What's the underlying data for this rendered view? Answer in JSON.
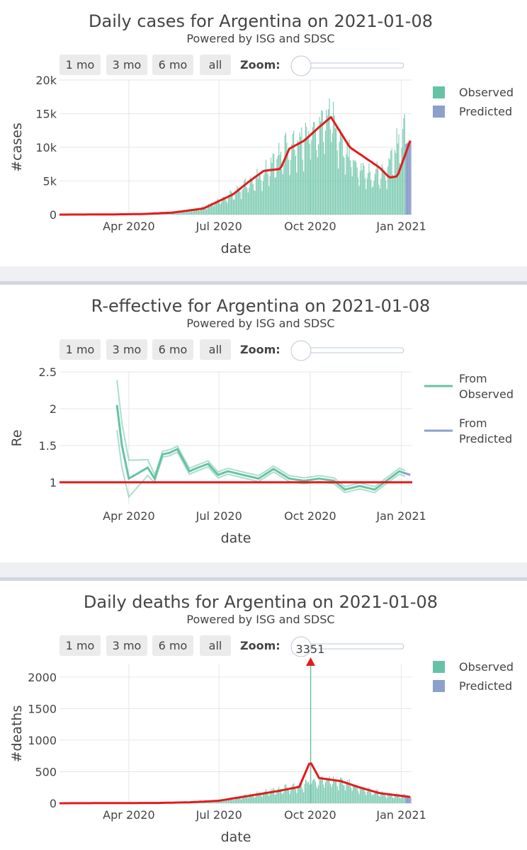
{
  "charts": [
    {
      "id": "cases",
      "title": "Daily cases for Argentina on 2021-01-08",
      "subtitle": "Powered by ISG and SDSC",
      "ylabel": "#cases",
      "xlabel": "date",
      "buttons": [
        "1 mo",
        "3 mo",
        "6 mo",
        "all"
      ],
      "zoom_label": "Zoom:",
      "legend": [
        "Observed",
        "Predicted"
      ]
    },
    {
      "id": "re",
      "title": "R-effective for Argentina on 2021-01-08",
      "subtitle": "Powered by ISG and SDSC",
      "ylabel": "Re",
      "xlabel": "date",
      "buttons": [
        "1 mo",
        "3 mo",
        "6 mo",
        "all"
      ],
      "zoom_label": "Zoom:",
      "legend": [
        [
          "From",
          "Observed"
        ],
        [
          "From",
          "Predicted"
        ]
      ]
    },
    {
      "id": "deaths",
      "title": "Daily deaths for Argentina on 2021-01-08",
      "subtitle": "Powered by ISG and SDSC",
      "ylabel": "#deaths",
      "xlabel": "date",
      "buttons": [
        "1 mo",
        "3 mo",
        "6 mo",
        "all"
      ],
      "zoom_label": "Zoom:",
      "legend": [
        "Observed",
        "Predicted"
      ],
      "annotation": "3351"
    }
  ],
  "colors": {
    "observed": "#66c2a5",
    "predicted": "#8da0cb",
    "smooth": "#e41a1c",
    "grid": "#e6e6e6"
  },
  "chart_data": [
    {
      "type": "bar",
      "title": "Daily cases for Argentina on 2021-01-08",
      "xlabel": "date",
      "ylabel": "#cases",
      "x_range": [
        "2020-01-22",
        "2021-01-12"
      ],
      "ylim": [
        0,
        20000
      ],
      "yticks": [
        0,
        5000,
        10000,
        15000,
        20000
      ],
      "ytick_labels": [
        "0",
        "5k",
        "10k",
        "15k",
        "20k"
      ],
      "xticks": [
        "2020-04-01",
        "2020-07-01",
        "2020-10-01",
        "2021-01-01"
      ],
      "xtick_labels": [
        "Apr 2020",
        "Jul 2020",
        "Oct 2020",
        "Jan 2021"
      ],
      "observed_weekly": [
        [
          "2020-03-01",
          10
        ],
        [
          "2020-03-15",
          60
        ],
        [
          "2020-04-01",
          100
        ],
        [
          "2020-04-15",
          130
        ],
        [
          "2020-05-01",
          180
        ],
        [
          "2020-05-15",
          380
        ],
        [
          "2020-06-01",
          650
        ],
        [
          "2020-06-15",
          1000
        ],
        [
          "2020-07-01",
          2200
        ],
        [
          "2020-07-15",
          3300
        ],
        [
          "2020-08-01",
          5000
        ],
        [
          "2020-08-15",
          6300
        ],
        [
          "2020-09-01",
          9500
        ],
        [
          "2020-09-15",
          11000
        ],
        [
          "2020-10-01",
          12500
        ],
        [
          "2020-10-15",
          14000
        ],
        [
          "2020-10-22",
          15500
        ],
        [
          "2020-11-01",
          10500
        ],
        [
          "2020-11-15",
          8000
        ],
        [
          "2020-12-01",
          6000
        ],
        [
          "2020-12-15",
          6500
        ],
        [
          "2020-12-25",
          10000
        ],
        [
          "2021-01-05",
          12500
        ]
      ],
      "predicted": [
        [
          "2021-01-05",
          10500
        ],
        [
          "2021-01-10",
          11000
        ]
      ],
      "smooth": [
        [
          "2020-01-22",
          0
        ],
        [
          "2020-03-15",
          30
        ],
        [
          "2020-04-15",
          90
        ],
        [
          "2020-05-15",
          300
        ],
        [
          "2020-06-15",
          900
        ],
        [
          "2020-07-15",
          3000
        ],
        [
          "2020-08-01",
          5000
        ],
        [
          "2020-08-15",
          6500
        ],
        [
          "2020-09-01",
          6800
        ],
        [
          "2020-09-10",
          9800
        ],
        [
          "2020-09-25",
          11000
        ],
        [
          "2020-10-10",
          13000
        ],
        [
          "2020-10-22",
          14500
        ],
        [
          "2020-11-10",
          10000
        ],
        [
          "2020-11-25",
          8500
        ],
        [
          "2020-12-10",
          7000
        ],
        [
          "2020-12-20",
          5500
        ],
        [
          "2020-12-28",
          5700
        ],
        [
          "2021-01-10",
          11000
        ]
      ]
    },
    {
      "type": "line",
      "title": "R-effective for Argentina on 2021-01-08",
      "xlabel": "date",
      "ylabel": "Re",
      "x_range": [
        "2020-01-22",
        "2021-01-12"
      ],
      "ylim": [
        0.7,
        2.5
      ],
      "yticks": [
        1,
        1.5,
        2,
        2.5
      ],
      "ytick_labels": [
        "1",
        "1.5",
        "2",
        "2.5"
      ],
      "xticks": [
        "2020-04-01",
        "2020-07-01",
        "2020-10-01",
        "2021-01-01"
      ],
      "xtick_labels": [
        "Apr 2020",
        "Jul 2020",
        "Oct 2020",
        "Jan 2021"
      ],
      "series": [
        {
          "name": "From Observed",
          "values": [
            [
              "2020-03-20",
              2.05
            ],
            [
              "2020-03-25",
              1.5
            ],
            [
              "2020-04-01",
              1.05
            ],
            [
              "2020-04-10",
              1.12
            ],
            [
              "2020-04-20",
              1.2
            ],
            [
              "2020-04-27",
              1.05
            ],
            [
              "2020-05-05",
              1.38
            ],
            [
              "2020-05-12",
              1.4
            ],
            [
              "2020-05-20",
              1.45
            ],
            [
              "2020-06-01",
              1.15
            ],
            [
              "2020-06-10",
              1.2
            ],
            [
              "2020-06-20",
              1.25
            ],
            [
              "2020-06-30",
              1.1
            ],
            [
              "2020-07-10",
              1.15
            ],
            [
              "2020-07-25",
              1.1
            ],
            [
              "2020-08-10",
              1.05
            ],
            [
              "2020-08-25",
              1.18
            ],
            [
              "2020-09-10",
              1.05
            ],
            [
              "2020-09-25",
              1.02
            ],
            [
              "2020-10-10",
              1.05
            ],
            [
              "2020-10-25",
              1.02
            ],
            [
              "2020-11-05",
              0.9
            ],
            [
              "2020-11-20",
              0.95
            ],
            [
              "2020-12-05",
              0.9
            ],
            [
              "2020-12-20",
              1.05
            ],
            [
              "2020-12-30",
              1.15
            ],
            [
              "2021-01-05",
              1.12
            ]
          ]
        },
        {
          "name": "From Predicted",
          "values": [
            [
              "2021-01-03",
              1.13
            ],
            [
              "2021-01-10",
              1.1
            ]
          ]
        }
      ],
      "reference_line": 1
    },
    {
      "type": "bar",
      "title": "Daily deaths for Argentina on 2021-01-08",
      "xlabel": "date",
      "ylabel": "#deaths",
      "x_range": [
        "2020-01-22",
        "2021-01-12"
      ],
      "ylim": [
        0,
        2200
      ],
      "yticks": [
        0,
        500,
        1000,
        1500,
        2000
      ],
      "ytick_labels": [
        "0",
        "500",
        "1000",
        "1500",
        "2000"
      ],
      "xticks": [
        "2020-04-01",
        "2020-07-01",
        "2020-10-01",
        "2021-01-01"
      ],
      "xtick_labels": [
        "Apr 2020",
        "Jul 2020",
        "Oct 2020",
        "Jan 2021"
      ],
      "annotation": {
        "date": "2020-10-01",
        "value": 3351
      },
      "observed_weekly": [
        [
          "2020-04-01",
          3
        ],
        [
          "2020-05-01",
          8
        ],
        [
          "2020-06-01",
          20
        ],
        [
          "2020-07-01",
          45
        ],
        [
          "2020-07-15",
          80
        ],
        [
          "2020-08-01",
          130
        ],
        [
          "2020-08-15",
          180
        ],
        [
          "2020-09-01",
          230
        ],
        [
          "2020-09-15",
          280
        ],
        [
          "2020-10-01",
          350
        ],
        [
          "2020-10-15",
          380
        ],
        [
          "2020-11-01",
          350
        ],
        [
          "2020-11-15",
          280
        ],
        [
          "2020-12-01",
          200
        ],
        [
          "2020-12-15",
          150
        ],
        [
          "2021-01-05",
          120
        ]
      ],
      "predicted": [
        [
          "2021-01-05",
          100
        ],
        [
          "2021-01-10",
          95
        ]
      ],
      "smooth": [
        [
          "2020-01-22",
          0
        ],
        [
          "2020-05-01",
          5
        ],
        [
          "2020-06-01",
          15
        ],
        [
          "2020-07-01",
          40
        ],
        [
          "2020-08-01",
          120
        ],
        [
          "2020-09-01",
          200
        ],
        [
          "2020-09-20",
          260
        ],
        [
          "2020-10-01",
          660
        ],
        [
          "2020-10-10",
          400
        ],
        [
          "2020-11-01",
          350
        ],
        [
          "2020-11-20",
          250
        ],
        [
          "2020-12-10",
          160
        ],
        [
          "2021-01-10",
          100
        ]
      ]
    }
  ]
}
